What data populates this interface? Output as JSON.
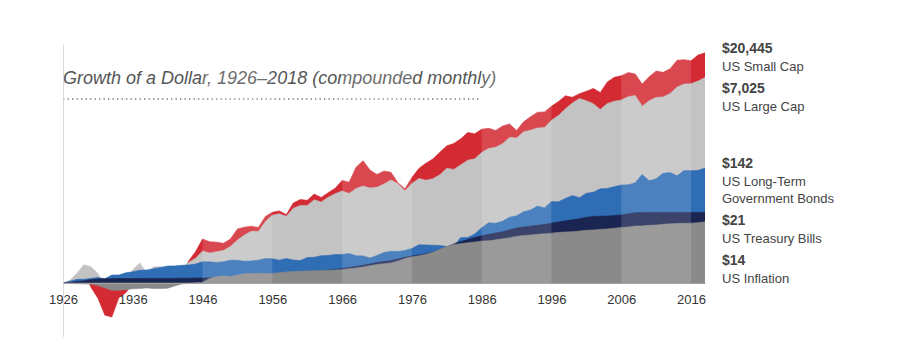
{
  "chart_data": {
    "type": "area",
    "title": "Growth of a Dollar, 1926–2018 (compounded monthly)",
    "log": "y",
    "grid": false,
    "tick_labels": "x",
    "data_labels": true,
    "xlim": [
      1926,
      2018
    ],
    "xticks": [
      1926,
      1936,
      1946,
      1956,
      1966,
      1976,
      1986,
      1996,
      2006,
      2016
    ],
    "ylim": [
      0.1,
      30000
    ],
    "x": [
      1926,
      1927,
      1928,
      1929,
      1930,
      1931,
      1932,
      1933,
      1934,
      1935,
      1936,
      1937,
      1938,
      1939,
      1940,
      1941,
      1942,
      1943,
      1944,
      1945,
      1946,
      1947,
      1948,
      1949,
      1950,
      1951,
      1952,
      1953,
      1954,
      1955,
      1956,
      1957,
      1958,
      1959,
      1960,
      1961,
      1962,
      1963,
      1964,
      1965,
      1966,
      1967,
      1968,
      1969,
      1970,
      1971,
      1972,
      1973,
      1974,
      1975,
      1976,
      1977,
      1978,
      1979,
      1980,
      1981,
      1982,
      1983,
      1984,
      1985,
      1986,
      1987,
      1988,
      1989,
      1990,
      1991,
      1992,
      1993,
      1994,
      1995,
      1996,
      1997,
      1998,
      1999,
      2000,
      2001,
      2002,
      2003,
      2004,
      2005,
      2006,
      2007,
      2008,
      2009,
      2010,
      2011,
      2012,
      2013,
      2014,
      2015,
      2016,
      2017,
      2018
    ],
    "series": [
      {
        "name": "US Small Cap",
        "color": "#d32a33",
        "values": [
          1,
          1.01,
          1.22,
          1.7,
          0.83,
          0.52,
          0.25,
          0.23,
          0.53,
          0.66,
          0.98,
          1.77,
          0.83,
          1.09,
          1.09,
          1.01,
          0.91,
          1.36,
          2.58,
          3.88,
          6.67,
          5.94,
          5.82,
          5.53,
          6.69,
          10.3,
          11.1,
          11.6,
          10.9,
          17.6,
          21.1,
          22.4,
          19.1,
          31.4,
          36.6,
          35.3,
          46.2,
          40.1,
          49.2,
          59.2,
          83.4,
          77.4,
          147,
          195,
          130,
          108,
          125,
          118,
          75,
          58,
          95,
          140,
          175,
          210,
          280,
          370,
          410,
          500,
          660,
          620,
          760,
          790,
          720,
          870,
          950,
          720,
          1040,
          1300,
          1580,
          1600,
          2050,
          2500,
          3200,
          3000,
          3500,
          3900,
          4400,
          3700,
          5800,
          7100,
          7600,
          8700,
          8200,
          5300,
          7300,
          9300,
          8800,
          10300,
          14800,
          15200,
          14500,
          18500,
          20445
        ],
        "value_labels": [
          null,
          null,
          null,
          null,
          null,
          null,
          null,
          null,
          null,
          null,
          null,
          null,
          null,
          null,
          null,
          null,
          null,
          null,
          null,
          null,
          null,
          null,
          null,
          null,
          null,
          null,
          null,
          null,
          null,
          null,
          null,
          null,
          null,
          null,
          null,
          null,
          null,
          null,
          null,
          null,
          null,
          null,
          null,
          null,
          null,
          null,
          null,
          null,
          null,
          null,
          null,
          null,
          null,
          null,
          null,
          null,
          null,
          null,
          null,
          null,
          null,
          null,
          null,
          null,
          null,
          null,
          null,
          null,
          null,
          null,
          null,
          null,
          null,
          null,
          null,
          null,
          null,
          null,
          null,
          null,
          null,
          null,
          null,
          null,
          null,
          null,
          null,
          null,
          null,
          null,
          null,
          null,
          "$20,445"
        ]
      },
      {
        "name": "US Large Cap",
        "color": "#c3c3c3",
        "values": [
          1,
          1.12,
          1.53,
          2.2,
          2.01,
          1.51,
          0.86,
          0.79,
          1.21,
          1.2,
          1.77,
          2.37,
          1.54,
          2.02,
          2.01,
          1.81,
          1.6,
          1.93,
          2.43,
          2.91,
          3.97,
          3.65,
          3.85,
          4.07,
          4.84,
          6.36,
          7.89,
          9.34,
          9.24,
          14.1,
          18.6,
          19.8,
          17.7,
          25.2,
          28.3,
          28.4,
          36.1,
          32.9,
          40.4,
          47.1,
          52.9,
          47.6,
          59,
          65.5,
          60,
          62.4,
          71.3,
          84.8,
          72.4,
          53.2,
          73,
          90.5,
          84,
          89.6,
          106,
          141,
          134,
          163,
          199,
          211,
          279,
          331,
          349,
          407,
          535,
          518,
          676,
          728,
          801,
          812,
          1117,
          1373,
          1831,
          2355,
          2851,
          2591,
          2283,
          1779,
          2289,
          2538,
          2663,
          3083,
          3252,
          2049,
          2591,
          2982,
          3044,
          3531,
          4676,
          5316,
          5390,
          6035,
          7025
        ],
        "value_labels": [
          null,
          null,
          null,
          null,
          null,
          null,
          null,
          null,
          null,
          null,
          null,
          null,
          null,
          null,
          null,
          null,
          null,
          null,
          null,
          null,
          null,
          null,
          null,
          null,
          null,
          null,
          null,
          null,
          null,
          null,
          null,
          null,
          null,
          null,
          null,
          null,
          null,
          null,
          null,
          null,
          null,
          null,
          null,
          null,
          null,
          null,
          null,
          null,
          null,
          null,
          null,
          null,
          null,
          null,
          null,
          null,
          null,
          null,
          null,
          null,
          null,
          null,
          null,
          null,
          null,
          null,
          null,
          null,
          null,
          null,
          null,
          null,
          null,
          null,
          null,
          null,
          null,
          null,
          null,
          null,
          null,
          null,
          null,
          null,
          null,
          null,
          null,
          null,
          null,
          null,
          null,
          null,
          "$7,025"
        ]
      },
      {
        "name": "US Long-Term Government Bonds",
        "color": "#2f6db5",
        "values": [
          1,
          1.08,
          1.17,
          1.18,
          1.22,
          1.27,
          1.2,
          1.41,
          1.41,
          1.55,
          1.62,
          1.74,
          1.75,
          1.85,
          1.96,
          2.08,
          2.09,
          2.14,
          2.18,
          2.26,
          2.49,
          2.49,
          2.42,
          2.51,
          2.67,
          2.66,
          2.56,
          2.59,
          2.68,
          2.87,
          2.84,
          2.68,
          2.87,
          2.69,
          2.63,
          3,
          3.03,
          3.24,
          3.28,
          3.4,
          3.43,
          3.55,
          3.23,
          3.22,
          2.94,
          3.29,
          3.73,
          3.94,
          3.89,
          4.06,
          4.44,
          5.19,
          5.16,
          5.1,
          5.04,
          4.84,
          4.94,
          7.09,
          7.13,
          8.24,
          10.8,
          13.4,
          13.1,
          14.4,
          17,
          18.1,
          21.6,
          23.3,
          27.6,
          25.4,
          33.4,
          33.1,
          38.4,
          43.4,
          39.6,
          47.9,
          50,
          58.1,
          59.1,
          63.7,
          68.2,
          68.9,
          75.4,
          108,
          82.1,
          89.2,
          113,
          117,
          102,
          128,
          127,
          128,
          142
        ],
        "value_labels": [
          null,
          null,
          null,
          null,
          null,
          null,
          null,
          null,
          null,
          null,
          null,
          null,
          null,
          null,
          null,
          null,
          null,
          null,
          null,
          null,
          null,
          null,
          null,
          null,
          null,
          null,
          null,
          null,
          null,
          null,
          null,
          null,
          null,
          null,
          null,
          null,
          null,
          null,
          null,
          null,
          null,
          null,
          null,
          null,
          null,
          null,
          null,
          null,
          null,
          null,
          null,
          null,
          null,
          null,
          null,
          null,
          null,
          null,
          null,
          null,
          null,
          null,
          null,
          null,
          null,
          null,
          null,
          null,
          null,
          null,
          null,
          null,
          null,
          null,
          null,
          null,
          null,
          null,
          null,
          null,
          null,
          null,
          null,
          null,
          null,
          null,
          null,
          null,
          null,
          null,
          null,
          null,
          "$142"
        ]
      },
      {
        "name": "US Treasury Bills",
        "color": "#1b2552",
        "values": [
          1,
          1.03,
          1.07,
          1.1,
          1.16,
          1.19,
          1.2,
          1.21,
          1.21,
          1.21,
          1.21,
          1.21,
          1.22,
          1.22,
          1.22,
          1.22,
          1.22,
          1.23,
          1.23,
          1.24,
          1.24,
          1.25,
          1.26,
          1.27,
          1.29,
          1.3,
          1.32,
          1.34,
          1.37,
          1.38,
          1.4,
          1.44,
          1.49,
          1.51,
          1.56,
          1.6,
          1.64,
          1.68,
          1.73,
          1.79,
          1.86,
          1.95,
          2.03,
          2.14,
          2.28,
          2.43,
          2.53,
          2.62,
          2.81,
          3.03,
          3.2,
          3.36,
          3.53,
          3.8,
          4.2,
          4.71,
          5.4,
          5.97,
          6.49,
          7.13,
          7.68,
          8.15,
          8.59,
          9.13,
          9.9,
          10.7,
          11.2,
          11.6,
          12,
          12.5,
          13.2,
          13.9,
          14.6,
          15.3,
          16,
          17,
          17.6,
          17.8,
          18,
          18.3,
          18.8,
          19.7,
          20.6,
          20.9,
          20.9,
          20.9,
          20.9,
          20.9,
          20.9,
          20.9,
          20.9,
          21,
          21
        ],
        "value_labels": [
          null,
          null,
          null,
          null,
          null,
          null,
          null,
          null,
          null,
          null,
          null,
          null,
          null,
          null,
          null,
          null,
          null,
          null,
          null,
          null,
          null,
          null,
          null,
          null,
          null,
          null,
          null,
          null,
          null,
          null,
          null,
          null,
          null,
          null,
          null,
          null,
          null,
          null,
          null,
          null,
          null,
          null,
          null,
          null,
          null,
          null,
          null,
          null,
          null,
          null,
          null,
          null,
          null,
          null,
          null,
          null,
          null,
          null,
          null,
          null,
          null,
          null,
          null,
          null,
          null,
          null,
          null,
          null,
          null,
          null,
          null,
          null,
          null,
          null,
          null,
          null,
          null,
          null,
          null,
          null,
          null,
          null,
          null,
          null,
          null,
          null,
          null,
          null,
          null,
          null,
          null,
          null,
          "$21"
        ]
      },
      {
        "name": "US Inflation",
        "color": "#8a8a8a",
        "values": [
          1,
          0.99,
          0.97,
          0.96,
          0.96,
          0.9,
          0.81,
          0.73,
          0.73,
          0.75,
          0.78,
          0.79,
          0.81,
          0.79,
          0.79,
          0.8,
          0.88,
          0.96,
          0.99,
          1.01,
          1.03,
          1.22,
          1.32,
          1.36,
          1.33,
          1.41,
          1.5,
          1.51,
          1.52,
          1.51,
          1.52,
          1.56,
          1.61,
          1.64,
          1.66,
          1.68,
          1.69,
          1.71,
          1.74,
          1.76,
          1.79,
          1.85,
          1.9,
          1.99,
          2.11,
          2.23,
          2.3,
          2.38,
          2.58,
          2.89,
          3.09,
          3.24,
          3.46,
          3.77,
          4.27,
          4.82,
          5.25,
          5.45,
          5.66,
          5.88,
          6.1,
          6.17,
          6.44,
          6.73,
          7.04,
          7.48,
          7.71,
          7.94,
          8.15,
          8.37,
          8.58,
          8.87,
          9.02,
          9.16,
          9.4,
          9.72,
          9.87,
          10.1,
          10.3,
          10.6,
          11,
          11.2,
          11.7,
          11.7,
          12,
          12.2,
          12.6,
          12.8,
          13,
          13.1,
          13.2,
          13.5,
          14
        ],
        "value_labels": [
          null,
          null,
          null,
          null,
          null,
          null,
          null,
          null,
          null,
          null,
          null,
          null,
          null,
          null,
          null,
          null,
          null,
          null,
          null,
          null,
          null,
          null,
          null,
          null,
          null,
          null,
          null,
          null,
          null,
          null,
          null,
          null,
          null,
          null,
          null,
          null,
          null,
          null,
          null,
          null,
          null,
          null,
          null,
          null,
          null,
          null,
          null,
          null,
          null,
          null,
          null,
          null,
          null,
          null,
          null,
          null,
          null,
          null,
          null,
          null,
          null,
          null,
          null,
          null,
          null,
          null,
          null,
          null,
          null,
          null,
          null,
          null,
          null,
          null,
          null,
          null,
          null,
          null,
          null,
          null,
          null,
          null,
          null,
          null,
          null,
          null,
          null,
          null,
          null,
          null,
          null,
          null,
          "$14"
        ]
      }
    ]
  }
}
